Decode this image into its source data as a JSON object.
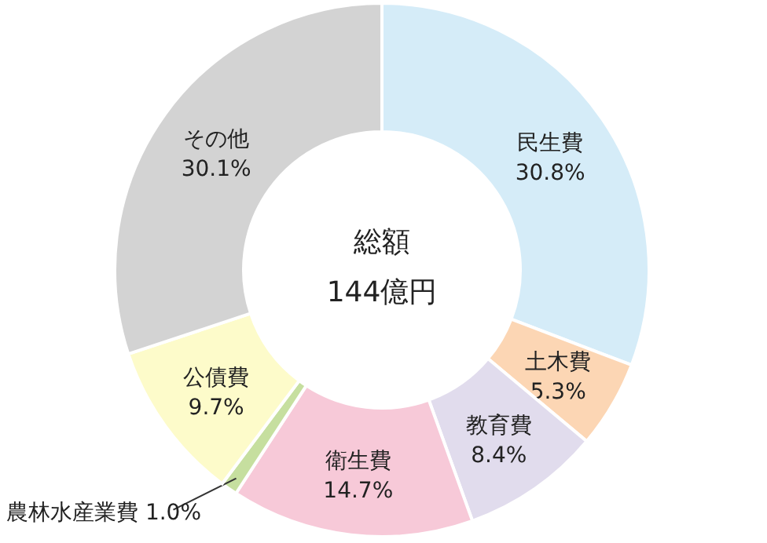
{
  "chart_data": {
    "type": "donut",
    "categories": [
      "民生費",
      "土木費",
      "教育費",
      "衛生費",
      "農林水産業費",
      "公債費",
      "その他"
    ],
    "values": [
      30.8,
      5.3,
      8.4,
      14.7,
      1.0,
      9.7,
      30.1
    ],
    "colors": [
      "#d5ecf8",
      "#fcd6b4",
      "#e1dced",
      "#f7c9d8",
      "#c6df9f",
      "#fdfbca",
      "#d3d3d3"
    ],
    "value_labels": [
      "30.8%",
      "5.3%",
      "8.4%",
      "14.7%",
      "1.0%",
      "9.7%",
      "30.1%"
    ],
    "annotations": [
      "総額",
      "144億円"
    ]
  }
}
